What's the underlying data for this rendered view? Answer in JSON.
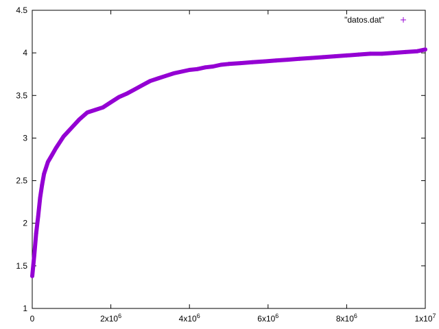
{
  "chart_data": {
    "type": "scatter",
    "title": "",
    "xlabel": "",
    "ylabel": "",
    "xlim": [
      0,
      10000000
    ],
    "ylim": [
      1,
      4.5
    ],
    "grid": false,
    "legend_position": "top-right",
    "colors": {
      "series": "#9400d3",
      "axis": "#000000",
      "background": "#ffffff"
    },
    "x_ticks": [
      {
        "value": 0,
        "base": "0",
        "exp": ""
      },
      {
        "value": 2000000,
        "base": "2x10",
        "exp": "6"
      },
      {
        "value": 4000000,
        "base": "4x10",
        "exp": "6"
      },
      {
        "value": 6000000,
        "base": "6x10",
        "exp": "6"
      },
      {
        "value": 8000000,
        "base": "8x10",
        "exp": "6"
      },
      {
        "value": 10000000,
        "base": "1x10",
        "exp": "7"
      }
    ],
    "y_ticks": [
      {
        "value": 1,
        "label": "1"
      },
      {
        "value": 1.5,
        "label": "1.5"
      },
      {
        "value": 2,
        "label": "2"
      },
      {
        "value": 2.5,
        "label": "2.5"
      },
      {
        "value": 3,
        "label": "3"
      },
      {
        "value": 3.5,
        "label": "3.5"
      },
      {
        "value": 4,
        "label": "4"
      },
      {
        "value": 4.5,
        "label": "4.5"
      }
    ],
    "series": [
      {
        "name": "\"datos.dat\"",
        "marker": "+",
        "x": [
          0,
          50000,
          100000,
          150000,
          200000,
          250000,
          300000,
          400000,
          500000,
          600000,
          700000,
          800000,
          900000,
          1000000,
          1200000,
          1400000,
          1600000,
          1800000,
          2000000,
          2200000,
          2400000,
          2600000,
          2800000,
          3000000,
          3200000,
          3400000,
          3600000,
          3800000,
          4000000,
          4200000,
          4400000,
          4600000,
          4800000,
          5000000,
          5300000,
          5600000,
          5900000,
          6200000,
          6500000,
          6800000,
          7100000,
          7400000,
          7700000,
          8000000,
          8300000,
          8600000,
          8900000,
          9200000,
          9500000,
          9800000,
          10000000
        ],
        "y": [
          1.38,
          1.62,
          1.88,
          2.08,
          2.3,
          2.45,
          2.58,
          2.72,
          2.8,
          2.88,
          2.95,
          3.02,
          3.07,
          3.12,
          3.22,
          3.3,
          3.33,
          3.36,
          3.42,
          3.48,
          3.52,
          3.57,
          3.62,
          3.67,
          3.7,
          3.73,
          3.76,
          3.78,
          3.8,
          3.81,
          3.83,
          3.84,
          3.86,
          3.87,
          3.88,
          3.89,
          3.9,
          3.91,
          3.92,
          3.93,
          3.94,
          3.95,
          3.96,
          3.97,
          3.98,
          3.99,
          3.99,
          4.0,
          4.01,
          4.02,
          4.04
        ]
      }
    ]
  }
}
